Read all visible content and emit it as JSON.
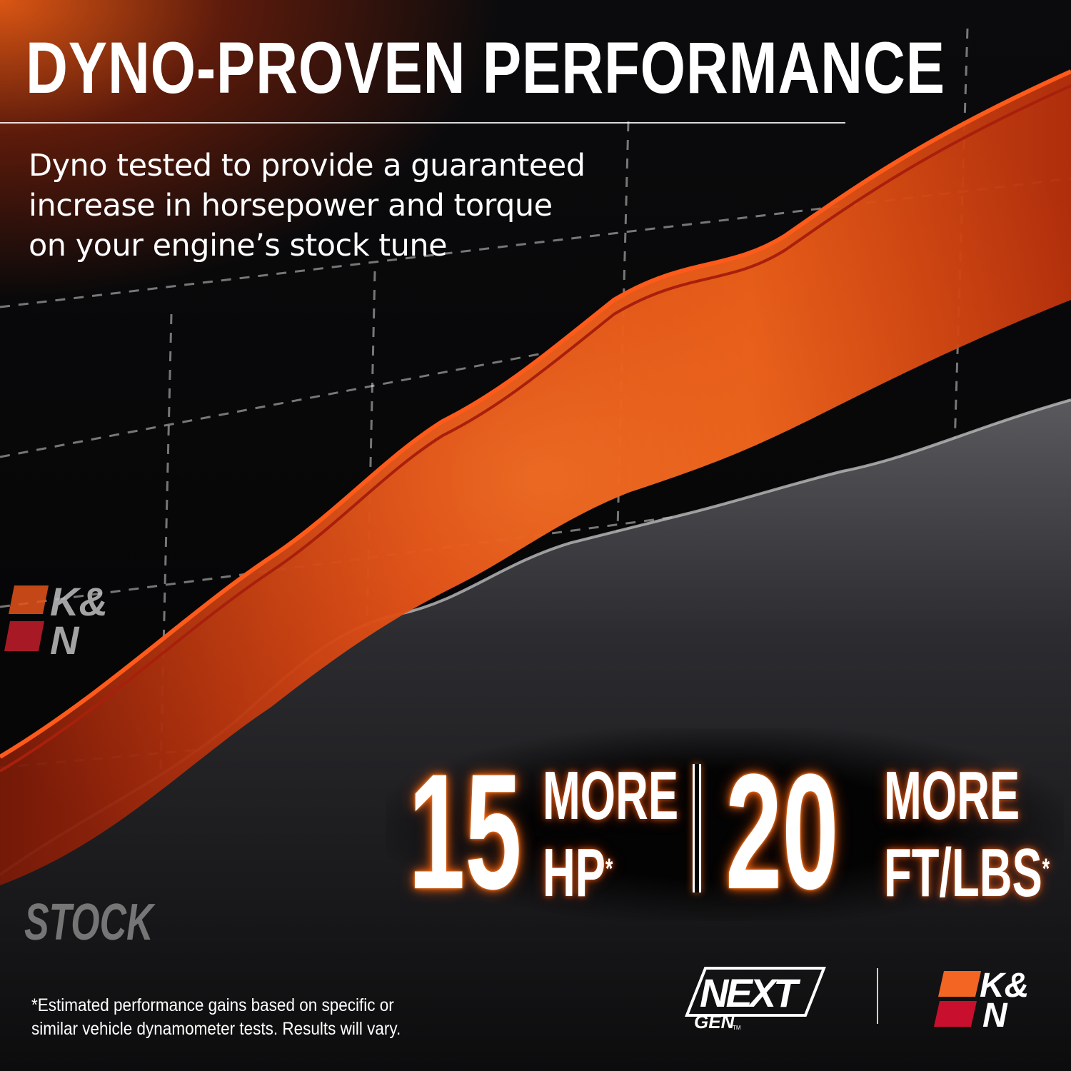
{
  "headline": "DYNO-PROVEN PERFORMANCE",
  "subcopy": [
    "Dyno tested to provide a guaranteed",
    "increase in horsepower and torque",
    "on your engine’s stock tune"
  ],
  "stock_label": "STOCK",
  "side_logo": {
    "text_top": "K&",
    "text_bottom": "N",
    "colors": [
      "#e5531a",
      "#c41e2a"
    ]
  },
  "stats": {
    "hp": {
      "number": "15",
      "line1": "MORE",
      "line2": "HP",
      "mark": "*"
    },
    "torque": {
      "number": "20",
      "line1": "MORE",
      "line2": "FT/LBS",
      "mark": "*"
    }
  },
  "disclaimer": [
    "*Estimated performance gains based on specific or",
    "similar vehicle dynamometer tests. Results will vary."
  ],
  "footer_logos": {
    "nextgen": {
      "top": "NEXT",
      "bottom": "GEN",
      "tm": "TM"
    },
    "kn": {
      "text_top": "K&",
      "text_bottom": "N"
    }
  },
  "colors": {
    "accent_orange": "#ff6a13",
    "kn_orange": "#f26522",
    "kn_red": "#c8102e",
    "stock_gray": "#9a9a9a"
  }
}
